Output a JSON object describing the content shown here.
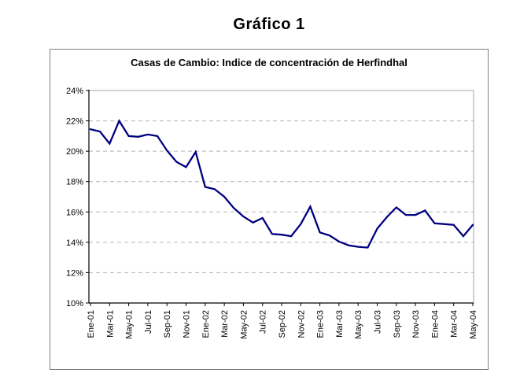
{
  "figure": {
    "title": "Gráfico 1"
  },
  "chart_data": {
    "type": "line",
    "title": "Casas de Cambio: Indice de concentración de Herfindhal",
    "xlabel": "",
    "ylabel": "",
    "x": [
      "Ene-01",
      "Feb-01",
      "Mar-01",
      "Abr-01",
      "May-01",
      "Jun-01",
      "Jul-01",
      "Ago-01",
      "Sep-01",
      "Oct-01",
      "Nov-01",
      "Dic-01",
      "Ene-02",
      "Feb-02",
      "Mar-02",
      "Abr-02",
      "May-02",
      "Jun-02",
      "Jul-02",
      "Ago-02",
      "Sep-02",
      "Oct-02",
      "Nov-02",
      "Dic-02",
      "Ene-03",
      "Feb-03",
      "Mar-03",
      "Abr-03",
      "May-03",
      "Jun-03",
      "Jul-03",
      "Ago-03",
      "Sep-03",
      "Oct-03",
      "Nov-03",
      "Dic-03",
      "Ene-04",
      "Feb-04",
      "Mar-04",
      "Abr-04",
      "May-04"
    ],
    "values": [
      21.45,
      21.3,
      20.5,
      22.0,
      21.0,
      20.95,
      21.1,
      21.0,
      20.05,
      19.3,
      18.95,
      19.95,
      17.65,
      17.5,
      17.0,
      16.25,
      15.7,
      15.3,
      15.6,
      14.55,
      14.5,
      14.4,
      15.2,
      16.35,
      14.65,
      14.45,
      14.05,
      13.8,
      13.7,
      13.65,
      14.9,
      15.65,
      16.3,
      15.8,
      15.8,
      16.1,
      15.25,
      15.2,
      15.15,
      14.4,
      15.15
    ],
    "xtick_labels": [
      "Ene-01",
      "Mar-01",
      "May-01",
      "Jul-01",
      "Sep-01",
      "Nov-01",
      "Ene-02",
      "Mar-02",
      "May-02",
      "Jul-02",
      "Sep-02",
      "Nov-02",
      "Ene-03",
      "Mar-03",
      "May-03",
      "Jul-03",
      "Sep-03",
      "Nov-03",
      "Ene-04",
      "Mar-04",
      "May-04"
    ],
    "ytick_labels": [
      "24%",
      "22%",
      "20%",
      "18%",
      "16%",
      "14%",
      "12%",
      "10%"
    ],
    "ylim": [
      10,
      24
    ],
    "grid": "horizontal-dashed",
    "legend": "none",
    "colors": {
      "line": "#000080",
      "gridline": "#b3b3b3",
      "plot_border": "#a6a6a6",
      "axis": "#000000"
    }
  }
}
